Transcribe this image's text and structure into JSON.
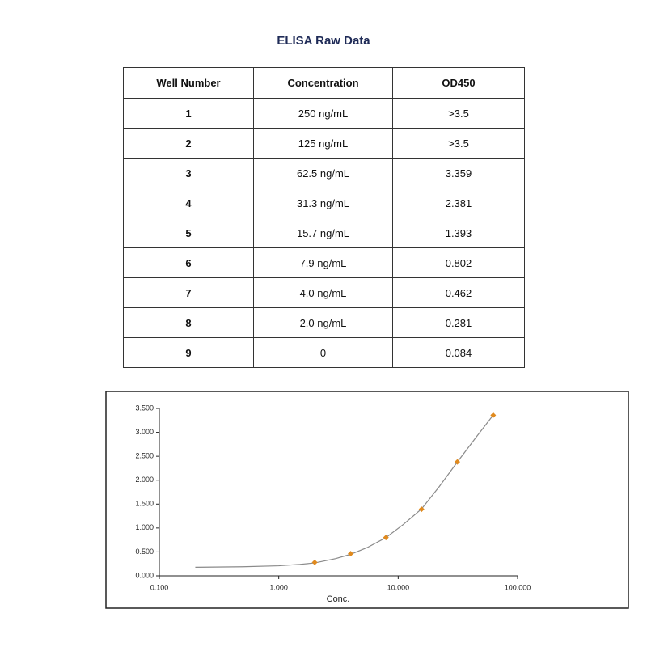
{
  "title": "ELISA Raw Data",
  "table": {
    "header": [
      "Well Number",
      "Concentration",
      "OD450"
    ],
    "rows": [
      [
        "1",
        "250 ng/mL",
        ">3.5"
      ],
      [
        "2",
        "125 ng/mL",
        ">3.5"
      ],
      [
        "3",
        "62.5 ng/mL",
        "3.359"
      ],
      [
        "4",
        "31.3 ng/mL",
        "2.381"
      ],
      [
        "5",
        "15.7 ng/mL",
        "1.393"
      ],
      [
        "6",
        "7.9 ng/mL",
        "0.802"
      ],
      [
        "7",
        "4.0 ng/mL",
        "0.462"
      ],
      [
        "8",
        "2.0 ng/mL",
        "0.281"
      ],
      [
        "9",
        "0",
        "0.084"
      ]
    ]
  },
  "chart_data": {
    "type": "scatter",
    "xlabel": "Conc.",
    "xscale": "log",
    "xlim": [
      0.1,
      100
    ],
    "xticks": [
      {
        "value": 0.1,
        "label": "0.100"
      },
      {
        "value": 1,
        "label": "1.000"
      },
      {
        "value": 10,
        "label": "10.000"
      },
      {
        "value": 100,
        "label": "100.000"
      }
    ],
    "ylim": [
      0,
      3.5
    ],
    "yticks": [
      {
        "value": 0,
        "label": "0.000"
      },
      {
        "value": 0.5,
        "label": "0.500"
      },
      {
        "value": 1,
        "label": "1.000"
      },
      {
        "value": 1.5,
        "label": "1.500"
      },
      {
        "value": 2,
        "label": "2.000"
      },
      {
        "value": 2.5,
        "label": "2.500"
      },
      {
        "value": 3,
        "label": "3.000"
      },
      {
        "value": 3.5,
        "label": "3.500"
      }
    ],
    "grid": false,
    "series": [
      {
        "type": "line",
        "color": "#8a8a8a",
        "x": [
          0.2,
          0.5,
          1,
          1.5,
          2,
          3,
          4,
          5.5,
          7.9,
          11,
          15.7,
          22,
          31.3,
          45,
          62.5
        ],
        "values": [
          0.18,
          0.19,
          0.21,
          0.24,
          0.27,
          0.36,
          0.45,
          0.59,
          0.8,
          1.07,
          1.4,
          1.86,
          2.38,
          2.9,
          3.36
        ]
      },
      {
        "type": "scatter",
        "color": "#e08a1e",
        "x": [
          2.0,
          4.0,
          7.9,
          15.7,
          31.3,
          62.5
        ],
        "values": [
          0.281,
          0.462,
          0.802,
          1.393,
          2.381,
          3.359
        ]
      }
    ]
  }
}
